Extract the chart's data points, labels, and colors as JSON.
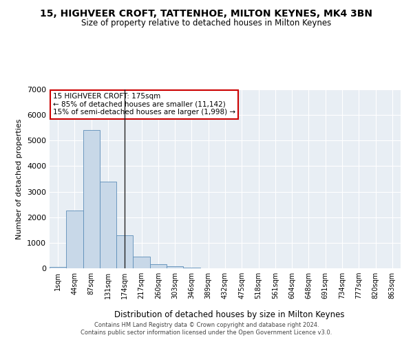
{
  "title_line1": "15, HIGHVEER CROFT, TATTENHOE, MILTON KEYNES, MK4 3BN",
  "title_line2": "Size of property relative to detached houses in Milton Keynes",
  "xlabel": "Distribution of detached houses by size in Milton Keynes",
  "ylabel": "Number of detached properties",
  "footer_line1": "Contains HM Land Registry data © Crown copyright and database right 2024.",
  "footer_line2": "Contains public sector information licensed under the Open Government Licence v3.0.",
  "annotation_line1": "15 HIGHVEER CROFT: 175sqm",
  "annotation_line2": "← 85% of detached houses are smaller (11,142)",
  "annotation_line3": "15% of semi-detached houses are larger (1,998) →",
  "bar_color": "#c8d8e8",
  "bar_edge_color": "#5b8db8",
  "vline_color": "#222222",
  "annotation_box_edge_color": "#cc0000",
  "background_color": "#e8eef4",
  "grid_color": "#ffffff",
  "categories": [
    "1sqm",
    "44sqm",
    "87sqm",
    "131sqm",
    "174sqm",
    "217sqm",
    "260sqm",
    "303sqm",
    "346sqm",
    "389sqm",
    "432sqm",
    "475sqm",
    "518sqm",
    "561sqm",
    "604sqm",
    "648sqm",
    "691sqm",
    "734sqm",
    "777sqm",
    "820sqm",
    "863sqm"
  ],
  "values": [
    50,
    2250,
    5400,
    3400,
    1300,
    450,
    150,
    80,
    20,
    5,
    2,
    1,
    0,
    0,
    0,
    0,
    0,
    0,
    0,
    0,
    0
  ],
  "ylim": [
    0,
    7000
  ],
  "yticks": [
    0,
    1000,
    2000,
    3000,
    4000,
    5000,
    6000,
    7000
  ],
  "vline_bar_index": 4
}
